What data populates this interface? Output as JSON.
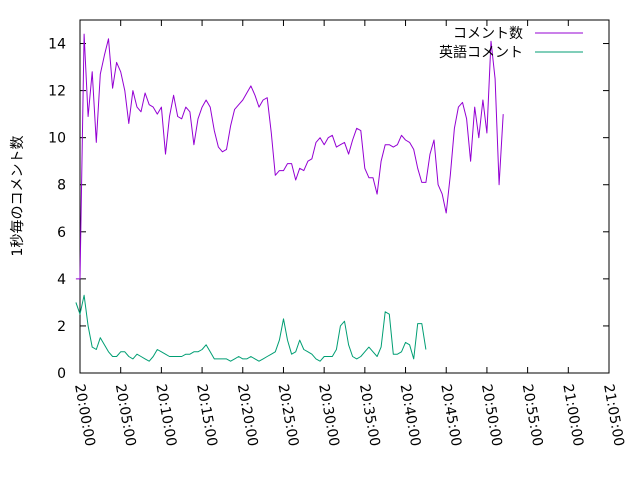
{
  "chart_data": {
    "type": "line",
    "ylabel": "1秒毎のコメント数",
    "ylim": [
      0,
      15
    ],
    "y_ticks": [
      0,
      2,
      4,
      6,
      8,
      10,
      12,
      14
    ],
    "x_ticks": [
      "20:00:00",
      "20:05:00",
      "20:10:00",
      "20:15:00",
      "20:20:00",
      "20:25:00",
      "20:30:00",
      "20:35:00",
      "20:40:00",
      "20:45:00",
      "20:50:00",
      "20:55:00",
      "21:00:00",
      "21:05:00"
    ],
    "xlim": [
      "20:00:00",
      "21:05:00"
    ],
    "grid": false,
    "legend_position": "top-right",
    "series": [
      {
        "name": "コメント数",
        "color": "#9400d3",
        "points": [
          [
            "19:59:30",
            4.0
          ],
          [
            "20:00:00",
            4.0
          ],
          [
            "20:00:30",
            14.4
          ],
          [
            "20:01:00",
            10.9
          ],
          [
            "20:01:30",
            12.8
          ],
          [
            "20:02:00",
            9.8
          ],
          [
            "20:02:30",
            12.7
          ],
          [
            "20:03:00",
            13.5
          ],
          [
            "20:03:30",
            14.2
          ],
          [
            "20:04:00",
            12.1
          ],
          [
            "20:04:30",
            13.2
          ],
          [
            "20:05:00",
            12.8
          ],
          [
            "20:05:30",
            12.0
          ],
          [
            "20:06:00",
            10.6
          ],
          [
            "20:06:30",
            12.0
          ],
          [
            "20:07:00",
            11.3
          ],
          [
            "20:07:30",
            11.1
          ],
          [
            "20:08:00",
            11.9
          ],
          [
            "20:08:30",
            11.4
          ],
          [
            "20:09:00",
            11.3
          ],
          [
            "20:09:30",
            11.0
          ],
          [
            "20:10:00",
            11.3
          ],
          [
            "20:10:30",
            9.3
          ],
          [
            "20:11:00",
            10.9
          ],
          [
            "20:11:30",
            11.8
          ],
          [
            "20:12:00",
            10.9
          ],
          [
            "20:12:30",
            10.8
          ],
          [
            "20:13:00",
            11.3
          ],
          [
            "20:13:30",
            11.1
          ],
          [
            "20:14:00",
            9.7
          ],
          [
            "20:14:30",
            10.8
          ],
          [
            "20:15:00",
            11.3
          ],
          [
            "20:15:30",
            11.6
          ],
          [
            "20:16:00",
            11.3
          ],
          [
            "20:16:30",
            10.3
          ],
          [
            "20:17:00",
            9.6
          ],
          [
            "20:17:30",
            9.4
          ],
          [
            "20:18:00",
            9.5
          ],
          [
            "20:18:30",
            10.5
          ],
          [
            "20:19:00",
            11.2
          ],
          [
            "20:19:30",
            11.4
          ],
          [
            "20:20:00",
            11.6
          ],
          [
            "20:20:30",
            11.9
          ],
          [
            "20:21:00",
            12.2
          ],
          [
            "20:21:30",
            11.8
          ],
          [
            "20:22:00",
            11.3
          ],
          [
            "20:22:30",
            11.6
          ],
          [
            "20:23:00",
            11.7
          ],
          [
            "20:23:30",
            10.2
          ],
          [
            "20:24:00",
            8.4
          ],
          [
            "20:24:30",
            8.6
          ],
          [
            "20:25:00",
            8.6
          ],
          [
            "20:25:30",
            8.9
          ],
          [
            "20:26:00",
            8.9
          ],
          [
            "20:26:30",
            8.2
          ],
          [
            "20:27:00",
            8.7
          ],
          [
            "20:27:30",
            8.6
          ],
          [
            "20:28:00",
            9.0
          ],
          [
            "20:28:30",
            9.1
          ],
          [
            "20:29:00",
            9.8
          ],
          [
            "20:29:30",
            10.0
          ],
          [
            "20:30:00",
            9.7
          ],
          [
            "20:30:30",
            10.0
          ],
          [
            "20:31:00",
            10.1
          ],
          [
            "20:31:30",
            9.6
          ],
          [
            "20:32:00",
            9.7
          ],
          [
            "20:32:30",
            9.8
          ],
          [
            "20:33:00",
            9.3
          ],
          [
            "20:33:30",
            9.9
          ],
          [
            "20:34:00",
            10.4
          ],
          [
            "20:34:30",
            10.3
          ],
          [
            "20:35:00",
            8.7
          ],
          [
            "20:35:30",
            8.3
          ],
          [
            "20:36:00",
            8.3
          ],
          [
            "20:36:30",
            7.6
          ],
          [
            "20:37:00",
            9.0
          ],
          [
            "20:37:30",
            9.7
          ],
          [
            "20:38:00",
            9.7
          ],
          [
            "20:38:30",
            9.6
          ],
          [
            "20:39:00",
            9.7
          ],
          [
            "20:39:30",
            10.1
          ],
          [
            "20:40:00",
            9.9
          ],
          [
            "20:40:30",
            9.8
          ],
          [
            "20:41:00",
            9.5
          ],
          [
            "20:41:30",
            8.7
          ],
          [
            "20:42:00",
            8.1
          ],
          [
            "20:42:30",
            8.1
          ],
          [
            "20:43:00",
            9.3
          ],
          [
            "20:43:30",
            9.9
          ],
          [
            "20:44:00",
            8.0
          ],
          [
            "20:44:30",
            7.6
          ],
          [
            "20:45:00",
            6.8
          ],
          [
            "20:45:30",
            8.4
          ],
          [
            "20:46:00",
            10.4
          ],
          [
            "20:46:30",
            11.3
          ],
          [
            "20:47:00",
            11.5
          ],
          [
            "20:47:30",
            10.8
          ],
          [
            "20:48:00",
            9.0
          ],
          [
            "20:48:30",
            11.3
          ],
          [
            "20:49:00",
            10.0
          ],
          [
            "20:49:30",
            11.6
          ],
          [
            "20:50:00",
            10.2
          ],
          [
            "20:50:30",
            14.1
          ],
          [
            "20:51:00",
            12.5
          ],
          [
            "20:51:30",
            8.0
          ],
          [
            "20:52:00",
            11.0
          ]
        ]
      },
      {
        "name": "英語コメント",
        "color": "#009e73",
        "points": [
          [
            "19:59:30",
            3.0
          ],
          [
            "20:00:00",
            2.5
          ],
          [
            "20:00:30",
            3.3
          ],
          [
            "20:01:00",
            2.0
          ],
          [
            "20:01:30",
            1.1
          ],
          [
            "20:02:00",
            1.0
          ],
          [
            "20:02:30",
            1.5
          ],
          [
            "20:03:00",
            1.2
          ],
          [
            "20:03:30",
            0.9
          ],
          [
            "20:04:00",
            0.7
          ],
          [
            "20:04:30",
            0.7
          ],
          [
            "20:05:00",
            0.9
          ],
          [
            "20:05:30",
            0.9
          ],
          [
            "20:06:00",
            0.7
          ],
          [
            "20:06:30",
            0.6
          ],
          [
            "20:07:00",
            0.8
          ],
          [
            "20:07:30",
            0.7
          ],
          [
            "20:08:00",
            0.6
          ],
          [
            "20:08:30",
            0.5
          ],
          [
            "20:09:00",
            0.7
          ],
          [
            "20:09:30",
            1.0
          ],
          [
            "20:10:00",
            0.9
          ],
          [
            "20:10:30",
            0.8
          ],
          [
            "20:11:00",
            0.7
          ],
          [
            "20:11:30",
            0.7
          ],
          [
            "20:12:00",
            0.7
          ],
          [
            "20:12:30",
            0.7
          ],
          [
            "20:13:00",
            0.8
          ],
          [
            "20:13:30",
            0.8
          ],
          [
            "20:14:00",
            0.9
          ],
          [
            "20:14:30",
            0.9
          ],
          [
            "20:15:00",
            1.0
          ],
          [
            "20:15:30",
            1.2
          ],
          [
            "20:16:00",
            0.9
          ],
          [
            "20:16:30",
            0.6
          ],
          [
            "20:17:00",
            0.6
          ],
          [
            "20:17:30",
            0.6
          ],
          [
            "20:18:00",
            0.6
          ],
          [
            "20:18:30",
            0.5
          ],
          [
            "20:19:00",
            0.6
          ],
          [
            "20:19:30",
            0.7
          ],
          [
            "20:20:00",
            0.6
          ],
          [
            "20:20:30",
            0.6
          ],
          [
            "20:21:00",
            0.7
          ],
          [
            "20:21:30",
            0.6
          ],
          [
            "20:22:00",
            0.5
          ],
          [
            "20:22:30",
            0.6
          ],
          [
            "20:23:00",
            0.7
          ],
          [
            "20:23:30",
            0.8
          ],
          [
            "20:24:00",
            0.9
          ],
          [
            "20:24:30",
            1.4
          ],
          [
            "20:25:00",
            2.3
          ],
          [
            "20:25:30",
            1.4
          ],
          [
            "20:26:00",
            0.8
          ],
          [
            "20:26:30",
            0.9
          ],
          [
            "20:27:00",
            1.4
          ],
          [
            "20:27:30",
            1.0
          ],
          [
            "20:28:00",
            0.9
          ],
          [
            "20:28:30",
            0.8
          ],
          [
            "20:29:00",
            0.6
          ],
          [
            "20:29:30",
            0.5
          ],
          [
            "20:30:00",
            0.7
          ],
          [
            "20:30:30",
            0.7
          ],
          [
            "20:31:00",
            0.7
          ],
          [
            "20:31:30",
            1.0
          ],
          [
            "20:32:00",
            2.0
          ],
          [
            "20:32:30",
            2.2
          ],
          [
            "20:33:00",
            1.2
          ],
          [
            "20:33:30",
            0.7
          ],
          [
            "20:34:00",
            0.6
          ],
          [
            "20:34:30",
            0.7
          ],
          [
            "20:35:00",
            0.9
          ],
          [
            "20:35:30",
            1.1
          ],
          [
            "20:36:00",
            0.9
          ],
          [
            "20:36:30",
            0.7
          ],
          [
            "20:37:00",
            1.1
          ],
          [
            "20:37:30",
            2.6
          ],
          [
            "20:38:00",
            2.5
          ],
          [
            "20:38:30",
            0.8
          ],
          [
            "20:39:00",
            0.8
          ],
          [
            "20:39:30",
            0.9
          ],
          [
            "20:40:00",
            1.3
          ],
          [
            "20:40:30",
            1.2
          ],
          [
            "20:41:00",
            0.6
          ],
          [
            "20:41:30",
            2.1
          ],
          [
            "20:42:00",
            2.1
          ],
          [
            "20:42:30",
            1.0
          ]
        ]
      }
    ]
  }
}
